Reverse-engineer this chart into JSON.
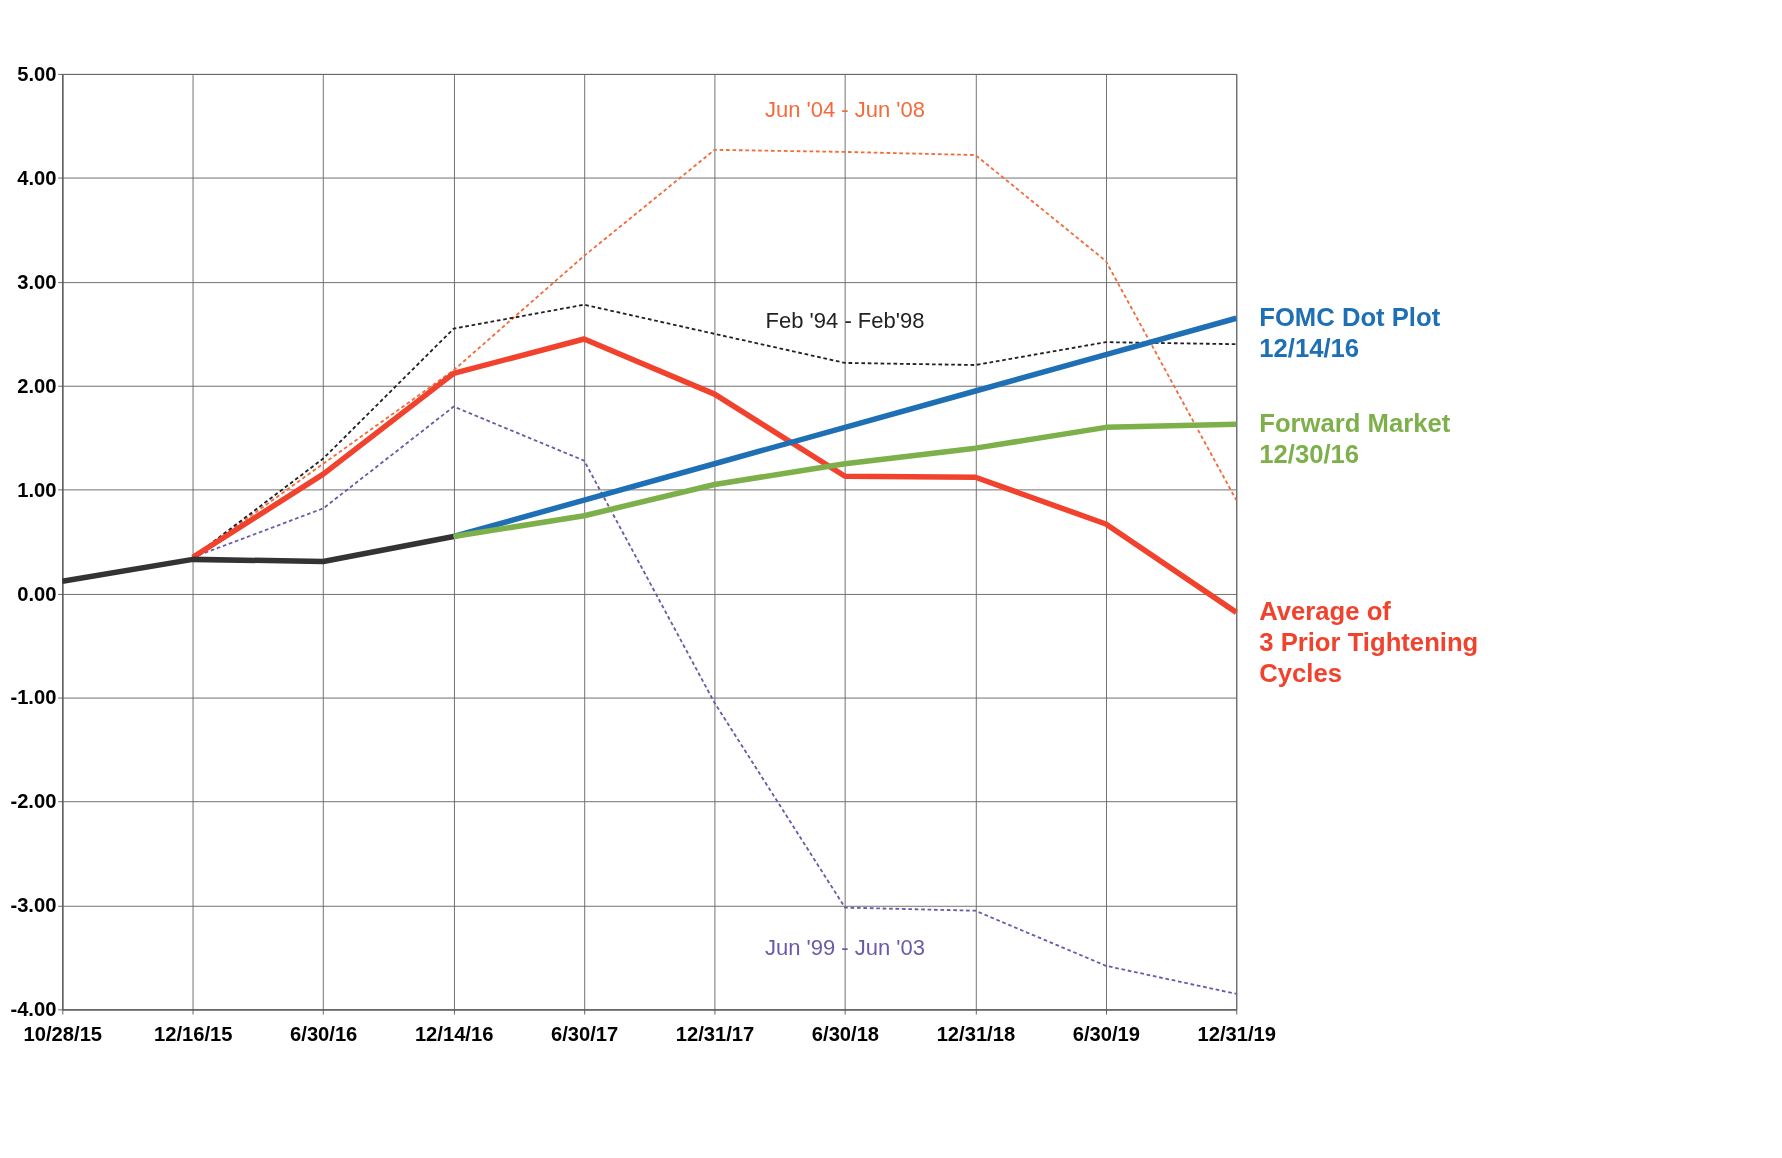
{
  "chart_data": {
    "type": "line",
    "categories": [
      "10/28/15",
      "12/16/15",
      "6/30/16",
      "12/14/16",
      "6/30/17",
      "12/31/17",
      "6/30/18",
      "12/31/18",
      "6/30/19",
      "12/31/19"
    ],
    "ylim": [
      -4,
      5
    ],
    "yticks": [
      {
        "value": -4,
        "label": "-4.00"
      },
      {
        "value": -3,
        "label": "-3.00"
      },
      {
        "value": -2,
        "label": "-2.00"
      },
      {
        "value": -1,
        "label": "-1.00"
      },
      {
        "value": 0,
        "label": "0.00"
      },
      {
        "value": 1,
        "label": "1.00"
      },
      {
        "value": 2,
        "label": "2.00"
      },
      {
        "value": 3,
        "label": "3.00"
      },
      {
        "value": 4,
        "label": "4.00"
      },
      {
        "value": 5,
        "label": "5.00"
      }
    ],
    "grid": true,
    "legend": false,
    "marker": "none",
    "series": [
      {
        "name": "Jun '04 - Jun '08",
        "color": "#f26b3a",
        "line_style": "dashed",
        "values": [
          null,
          0.35,
          1.25,
          2.15,
          3.25,
          4.27,
          4.25,
          4.22,
          3.2,
          0.9
        ]
      },
      {
        "name": "Feb '94 - Feb'98",
        "color": "#222222",
        "line_style": "dashed",
        "values": [
          null,
          0.35,
          1.3,
          2.55,
          2.78,
          2.5,
          2.22,
          2.2,
          2.42,
          2.4
        ]
      },
      {
        "name": "Jun '99 - Jun '03",
        "color": "#6a5aa8",
        "line_style": "dashed",
        "values": [
          null,
          0.35,
          0.82,
          1.8,
          1.28,
          -1.05,
          -3.02,
          -3.05,
          -3.58,
          -3.85
        ]
      },
      {
        "name": "Average of\n3 Prior Tightening\nCycles",
        "color": "#f0422c",
        "line_style": "solid",
        "values": [
          null,
          0.35,
          1.15,
          2.12,
          2.45,
          1.92,
          1.13,
          1.12,
          0.67,
          -0.18
        ]
      },
      {
        "color": "#333333",
        "line_style": "solid",
        "values": [
          0.12,
          0.33,
          0.31,
          0.55,
          null,
          null,
          null,
          null,
          null,
          null
        ]
      },
      {
        "name": "FOMC Dot Plot\n12/14/16",
        "color": "#1f6fb5",
        "line_style": "solid",
        "values": [
          null,
          null,
          null,
          0.55,
          0.9,
          1.25,
          1.6,
          1.95,
          2.3,
          2.65
        ]
      },
      {
        "name": "Forward Market\n12/30/16",
        "color": "#7db04a",
        "line_style": "solid",
        "values": [
          null,
          null,
          null,
          0.55,
          0.75,
          1.05,
          1.25,
          1.4,
          1.6,
          1.63
        ]
      }
    ]
  }
}
